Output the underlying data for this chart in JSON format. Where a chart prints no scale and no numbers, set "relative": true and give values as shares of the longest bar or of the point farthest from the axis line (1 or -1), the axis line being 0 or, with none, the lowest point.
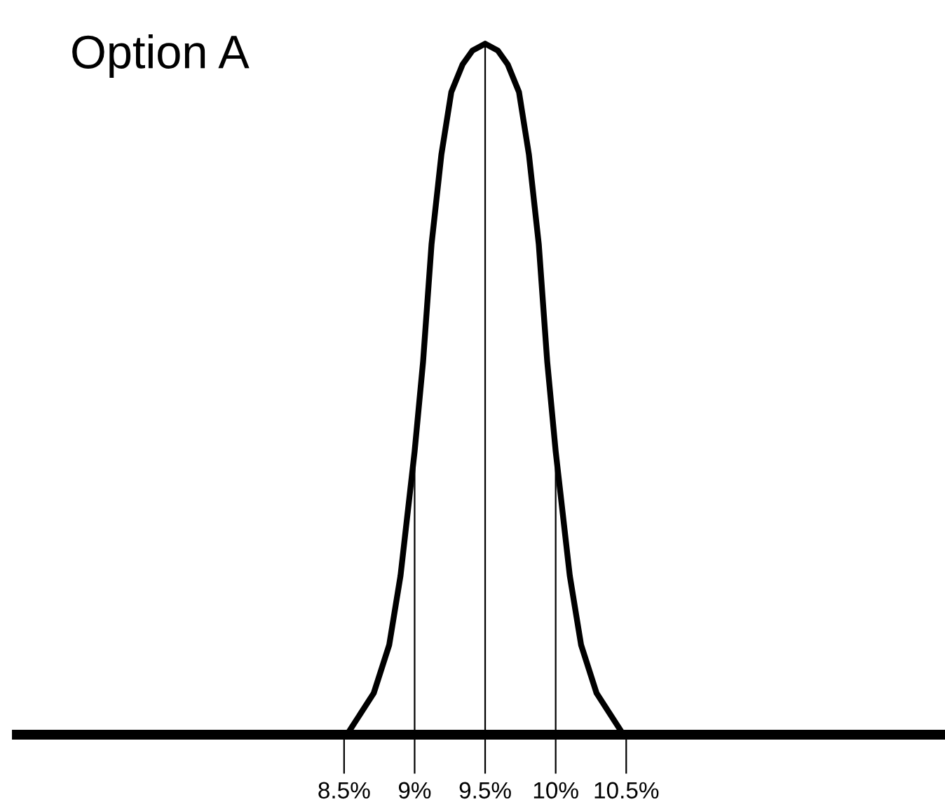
{
  "chart_data": {
    "type": "line",
    "title": "Option A",
    "relative": true,
    "x": [
      8.52,
      8.71,
      8.82,
      8.9,
      8.95,
      9.0,
      9.06,
      9.12,
      9.19,
      9.26,
      9.34,
      9.41,
      9.5,
      9.59,
      9.66,
      9.74,
      9.81,
      9.88,
      9.94,
      10.0,
      10.05,
      10.1,
      10.18,
      10.29,
      10.48
    ],
    "series": [
      {
        "color": "#000000",
        "values": [
          0,
          0.06,
          0.13,
          0.23,
          0.32,
          0.41,
          0.54,
          0.71,
          0.84,
          0.93,
          0.97,
          0.99,
          1,
          0.99,
          0.97,
          0.93,
          0.84,
          0.71,
          0.54,
          0.41,
          0.32,
          0.23,
          0.13,
          0.06,
          0
        ]
      }
    ],
    "xlim": [
      6.18,
      12.74
    ],
    "xticks": [
      {
        "value": 8.5,
        "label": "8.5%"
      },
      {
        "value": 9,
        "label": "9%"
      },
      {
        "value": 9.5,
        "label": "9.5%"
      },
      {
        "value": 10,
        "label": "10%"
      },
      {
        "value": 10.5,
        "label": "10.5%"
      }
    ],
    "ref_lines": [
      {
        "axis": "x",
        "value": 9,
        "color": "#000000"
      },
      {
        "axis": "x",
        "value": 9.5,
        "color": "#000000"
      },
      {
        "axis": "x",
        "value": 10,
        "color": "#000000"
      }
    ],
    "tick_labels": "x",
    "grid": false,
    "legend": false,
    "marker": "none",
    "line_style": "solid"
  }
}
